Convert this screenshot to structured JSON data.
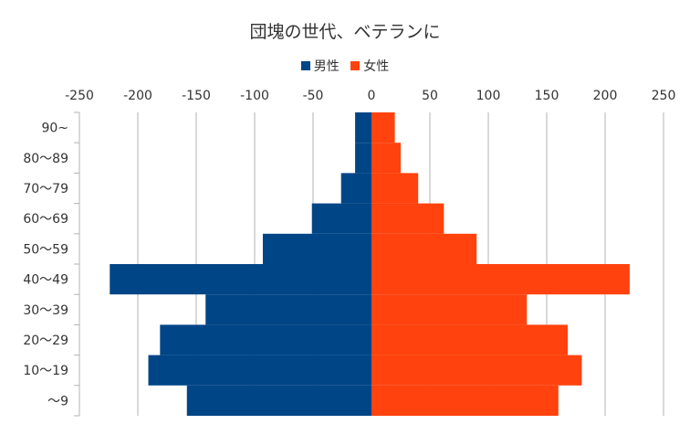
{
  "chart_data": {
    "type": "bar",
    "orientation": "horizontal",
    "stacked_diverging": true,
    "title": "団塊の世代、ベテランに",
    "categories": [
      "90~",
      "80～89",
      "70～79",
      "60～69",
      "50～59",
      "40～49",
      "30～39",
      "20～29",
      "10～19",
      "～9"
    ],
    "series": [
      {
        "name": "男性",
        "color": "#004586",
        "values": [
          -14,
          -14,
          -26,
          -51,
          -93,
          -224,
          -142,
          -181,
          -191,
          -158
        ]
      },
      {
        "name": "女性",
        "color": "#ff420e",
        "values": [
          20,
          25,
          40,
          62,
          90,
          221,
          133,
          168,
          180,
          160
        ]
      }
    ],
    "xlim": [
      -250,
      250
    ],
    "xticks": [
      -250,
      -200,
      -150,
      -100,
      -50,
      0,
      50,
      100,
      150,
      200,
      250
    ],
    "grid": true,
    "legend_position": "top"
  }
}
